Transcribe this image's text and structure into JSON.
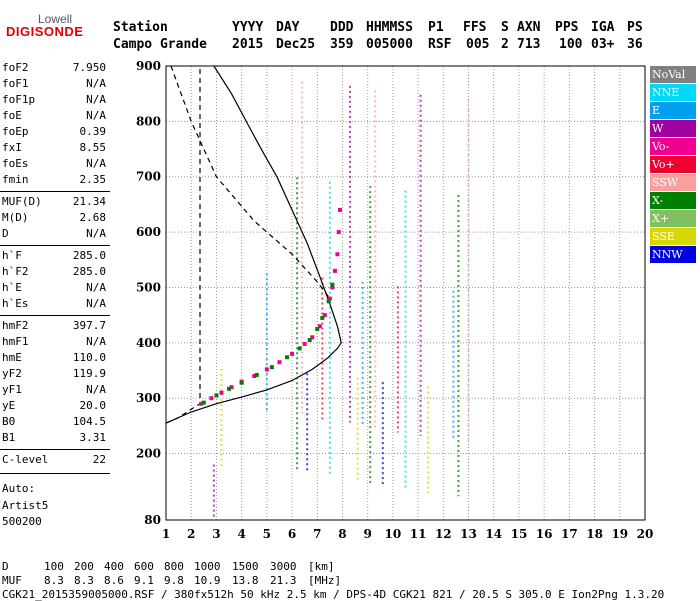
{
  "logo": {
    "top": "Lowell",
    "bottom": "DIGISONDE"
  },
  "header": {
    "labels": [
      "Station",
      "YYYY",
      "DAY",
      "DDD",
      "HHMMSS",
      "P1",
      "FFS",
      "S",
      "AXN",
      "PPS",
      "IGA",
      "PS"
    ],
    "values": [
      "Campo Grande",
      "2015",
      "Dec25",
      "359",
      "005000",
      "RSF",
      "005",
      "2",
      "713",
      "100",
      "03+",
      "36"
    ]
  },
  "params": [
    {
      "group": 1,
      "name": "foF2",
      "value": "7.950"
    },
    {
      "group": 1,
      "name": "foF1",
      "value": "N/A"
    },
    {
      "group": 1,
      "name": "foF1p",
      "value": "N/A"
    },
    {
      "group": 1,
      "name": "foE",
      "value": "N/A"
    },
    {
      "group": 1,
      "name": "foEp",
      "value": "0.39"
    },
    {
      "group": 1,
      "name": "fxI",
      "value": "8.55"
    },
    {
      "group": 1,
      "name": "foEs",
      "value": "N/A"
    },
    {
      "group": 1,
      "name": "fmin",
      "value": "2.35"
    },
    {
      "group": 2,
      "name": "MUF(D)",
      "value": "21.34"
    },
    {
      "group": 2,
      "name": "M(D)",
      "value": "2.68"
    },
    {
      "group": 2,
      "name": "D",
      "value": "N/A"
    },
    {
      "group": 3,
      "name": "h`F",
      "value": "285.0"
    },
    {
      "group": 3,
      "name": "h`F2",
      "value": "285.0"
    },
    {
      "group": 3,
      "name": "h`E",
      "value": "N/A"
    },
    {
      "group": 3,
      "name": "h`Es",
      "value": "N/A"
    },
    {
      "group": 4,
      "name": "hmF2",
      "value": "397.7"
    },
    {
      "group": 4,
      "name": "hmF1",
      "value": "N/A"
    },
    {
      "group": 4,
      "name": "hmE",
      "value": "110.0"
    },
    {
      "group": 4,
      "name": "yF2",
      "value": "119.9"
    },
    {
      "group": 4,
      "name": "yF1",
      "value": "N/A"
    },
    {
      "group": 4,
      "name": "yE",
      "value": "20.0"
    },
    {
      "group": 4,
      "name": "B0",
      "value": "104.5"
    },
    {
      "group": 4,
      "name": "B1",
      "value": "3.31"
    },
    {
      "group": 5,
      "name": "C-level",
      "value": "22"
    }
  ],
  "auto": {
    "line1": "Auto:",
    "line2": "Artist5",
    "line3": "500200"
  },
  "legend": [
    {
      "label": "NoVal",
      "color": "#808080"
    },
    {
      "label": "NNE",
      "color": "#00d8f8"
    },
    {
      "label": "E",
      "color": "#00a0f0"
    },
    {
      "label": "W",
      "color": "#a000a0"
    },
    {
      "label": "Vo-",
      "color": "#f00090"
    },
    {
      "label": "Vo+",
      "color": "#f00030"
    },
    {
      "label": "SSW",
      "color": "#f8a0a0"
    },
    {
      "label": "X-",
      "color": "#008000"
    },
    {
      "label": "X+",
      "color": "#80c060"
    },
    {
      "label": "SSE",
      "color": "#d8d800"
    },
    {
      "label": "NNW",
      "color": "#0000e0"
    }
  ],
  "footer": {
    "d_label": "D",
    "d_values": [
      "100",
      "200",
      "400",
      "600",
      "800",
      "1000",
      "1500",
      "3000"
    ],
    "d_unit": "[km]",
    "muf_label": "MUF",
    "muf_values": [
      "8.3",
      "8.3",
      "8.6",
      "9.1",
      "9.8",
      "10.9",
      "13.8",
      "21.3"
    ],
    "muf_unit": "[MHz]",
    "info": "CGK21_2015359005000.RSF / 380fx512h 50 kHz 2.5 km / DPS-4D CGK21 821 / 20.5 S 305.0 E Ion2Png 1.3.20"
  },
  "chart_data": {
    "type": "scatter",
    "xlim": [
      1,
      20
    ],
    "ylim": [
      80,
      900
    ],
    "x_ticks": [
      1,
      2,
      3,
      4,
      5,
      6,
      7,
      8,
      9,
      10,
      11,
      12,
      13,
      14,
      15,
      16,
      17,
      18,
      19,
      20
    ],
    "y_ticks": [
      80,
      200,
      300,
      400,
      500,
      600,
      700,
      800,
      900
    ],
    "grid": true,
    "series": [
      {
        "name": "Vo-",
        "points": [
          [
            2.4,
            290
          ],
          [
            2.8,
            300
          ],
          [
            3.2,
            310
          ],
          [
            3.6,
            320
          ],
          [
            4.0,
            330
          ],
          [
            4.5,
            340
          ],
          [
            5.0,
            352
          ],
          [
            5.5,
            365
          ],
          [
            6.0,
            380
          ],
          [
            6.5,
            398
          ],
          [
            6.8,
            410
          ],
          [
            7.1,
            430
          ],
          [
            7.3,
            450
          ],
          [
            7.5,
            480
          ],
          [
            7.6,
            500
          ],
          [
            7.7,
            530
          ],
          [
            7.8,
            560
          ],
          [
            7.85,
            600
          ],
          [
            7.9,
            640
          ]
        ]
      },
      {
        "name": "X-",
        "points": [
          [
            2.5,
            292
          ],
          [
            3.0,
            305
          ],
          [
            3.5,
            317
          ],
          [
            4.0,
            328
          ],
          [
            4.6,
            342
          ],
          [
            5.2,
            356
          ],
          [
            5.8,
            374
          ],
          [
            6.3,
            390
          ],
          [
            6.7,
            405
          ],
          [
            7.0,
            425
          ],
          [
            7.2,
            445
          ],
          [
            7.45,
            475
          ],
          [
            7.6,
            505
          ]
        ]
      }
    ],
    "profile_solid": [
      [
        1.0,
        255
      ],
      [
        2.0,
        275
      ],
      [
        3.0,
        290
      ],
      [
        4.0,
        302
      ],
      [
        5.0,
        315
      ],
      [
        6.0,
        332
      ],
      [
        6.8,
        352
      ],
      [
        7.4,
        372
      ],
      [
        7.8,
        390
      ],
      [
        7.95,
        400
      ],
      [
        7.8,
        430
      ],
      [
        7.5,
        470
      ],
      [
        7.1,
        520
      ],
      [
        6.6,
        580
      ],
      [
        6.0,
        640
      ],
      [
        5.4,
        700
      ],
      [
        4.9,
        740
      ],
      [
        4.3,
        790
      ],
      [
        3.6,
        850
      ],
      [
        2.9,
        900
      ]
    ],
    "profile_dashed": [
      [
        1.0,
        255
      ],
      [
        1.5,
        265
      ],
      [
        2.0,
        280
      ],
      [
        2.35,
        290
      ],
      [
        2.35,
        900
      ]
    ],
    "mof_dashed": [
      [
        1.2,
        900
      ],
      [
        2.0,
        800
      ],
      [
        3.0,
        700
      ],
      [
        4.5,
        620
      ],
      [
        6.0,
        560
      ],
      [
        7.0,
        510
      ],
      [
        7.5,
        480
      ]
    ]
  }
}
